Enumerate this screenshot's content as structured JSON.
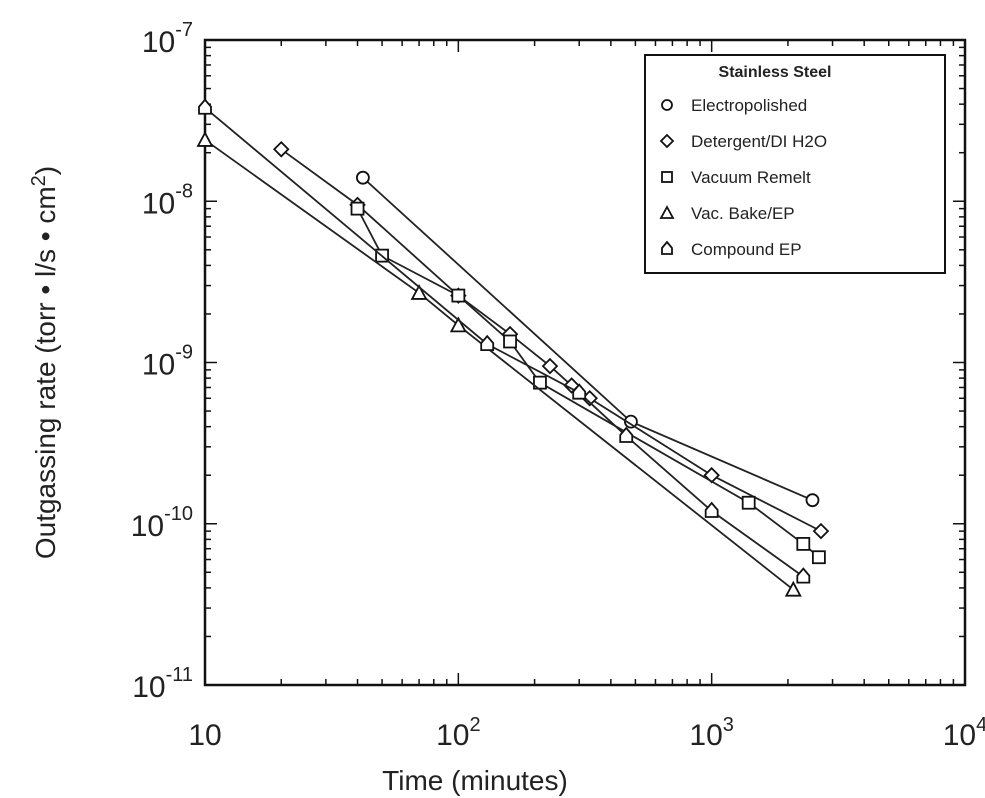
{
  "chart_data": {
    "type": "line",
    "title": "",
    "xlabel": "Time (minutes)",
    "ylabel": "Outgassing rate (torr • l/s • cm",
    "ylabel_sup": "2",
    "ylabel_close": ")",
    "xscale": "log",
    "yscale": "log",
    "xlim": [
      10,
      10000
    ],
    "ylim": [
      1e-11,
      1e-07
    ],
    "x_ticks": [
      {
        "value": 10,
        "base": "10",
        "exp": ""
      },
      {
        "value": 100,
        "base": "10",
        "exp": "2"
      },
      {
        "value": 1000,
        "base": "10",
        "exp": "3"
      },
      {
        "value": 10000,
        "base": "10",
        "exp": "4"
      }
    ],
    "y_ticks": [
      {
        "value": 1e-07,
        "base": "10",
        "exp": "-7"
      },
      {
        "value": 1e-08,
        "base": "10",
        "exp": "-8"
      },
      {
        "value": 1e-09,
        "base": "10",
        "exp": "-9"
      },
      {
        "value": 1e-10,
        "base": "10",
        "exp": "-10"
      },
      {
        "value": 1e-11,
        "base": "10",
        "exp": "-11"
      }
    ],
    "grid": false,
    "legend_position": "top-right",
    "legend_title": "Stainless Steel",
    "series": [
      {
        "name": "Electropolished",
        "marker": "circle",
        "x": [
          42,
          480,
          2500
        ],
        "y": [
          1.4e-08,
          4.3e-10,
          1.4e-10
        ]
      },
      {
        "name": "Detergent/DI  H2O",
        "marker": "diamond",
        "x": [
          20,
          40,
          100,
          160,
          230,
          280,
          330,
          1000,
          2700
        ],
        "y": [
          2.1e-08,
          9.5e-09,
          2.6e-09,
          1.5e-09,
          9.5e-10,
          7.2e-10,
          6e-10,
          2e-10,
          9e-11
        ]
      },
      {
        "name": "Vacuum Remelt",
        "marker": "square",
        "x": [
          40,
          50,
          100,
          160,
          210,
          1400,
          2300,
          2650
        ],
        "y": [
          9e-09,
          4.6e-09,
          2.6e-09,
          1.35e-09,
          7.5e-10,
          1.35e-10,
          7.5e-11,
          6.2e-11
        ]
      },
      {
        "name": "Vac. Bake/EP",
        "marker": "triangle",
        "x": [
          10,
          70,
          100,
          2100
        ],
        "y": [
          2.4e-08,
          2.7e-09,
          1.7e-09,
          3.9e-11
        ]
      },
      {
        "name": "Compound EP",
        "marker": "house",
        "x": [
          10,
          130,
          300,
          460,
          1000,
          2300
        ],
        "y": [
          3.8e-08,
          1.3e-09,
          6.5e-10,
          3.5e-10,
          1.2e-10,
          4.7e-11
        ]
      }
    ]
  }
}
